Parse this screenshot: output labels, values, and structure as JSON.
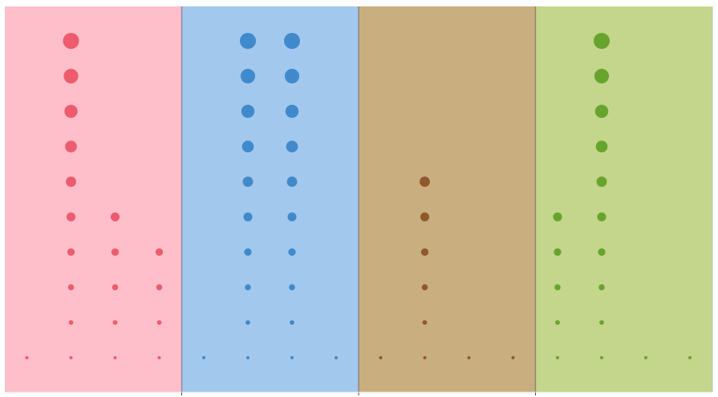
{
  "chart_data": {
    "type": "scatter",
    "title": "",
    "xlabel": "",
    "ylabel": "",
    "grid": false,
    "legend": "none",
    "rows": 10,
    "columns_per_panel": 4,
    "panels": [
      {
        "background": "#ffbfca",
        "dot_color": "#eb5466",
        "columns": [
          1,
          10,
          5,
          4
        ]
      },
      {
        "background": "#a3c8ee",
        "dot_color": "#3784c8",
        "columns": [
          1,
          10,
          10,
          1
        ]
      },
      {
        "background": "#c9ae80",
        "dot_color": "#8a5125",
        "columns": [
          1,
          6,
          1,
          1
        ]
      },
      {
        "background": "#c4d58c",
        "dot_color": "#5e9f24",
        "columns": [
          5,
          10,
          1,
          1
        ]
      }
    ]
  }
}
